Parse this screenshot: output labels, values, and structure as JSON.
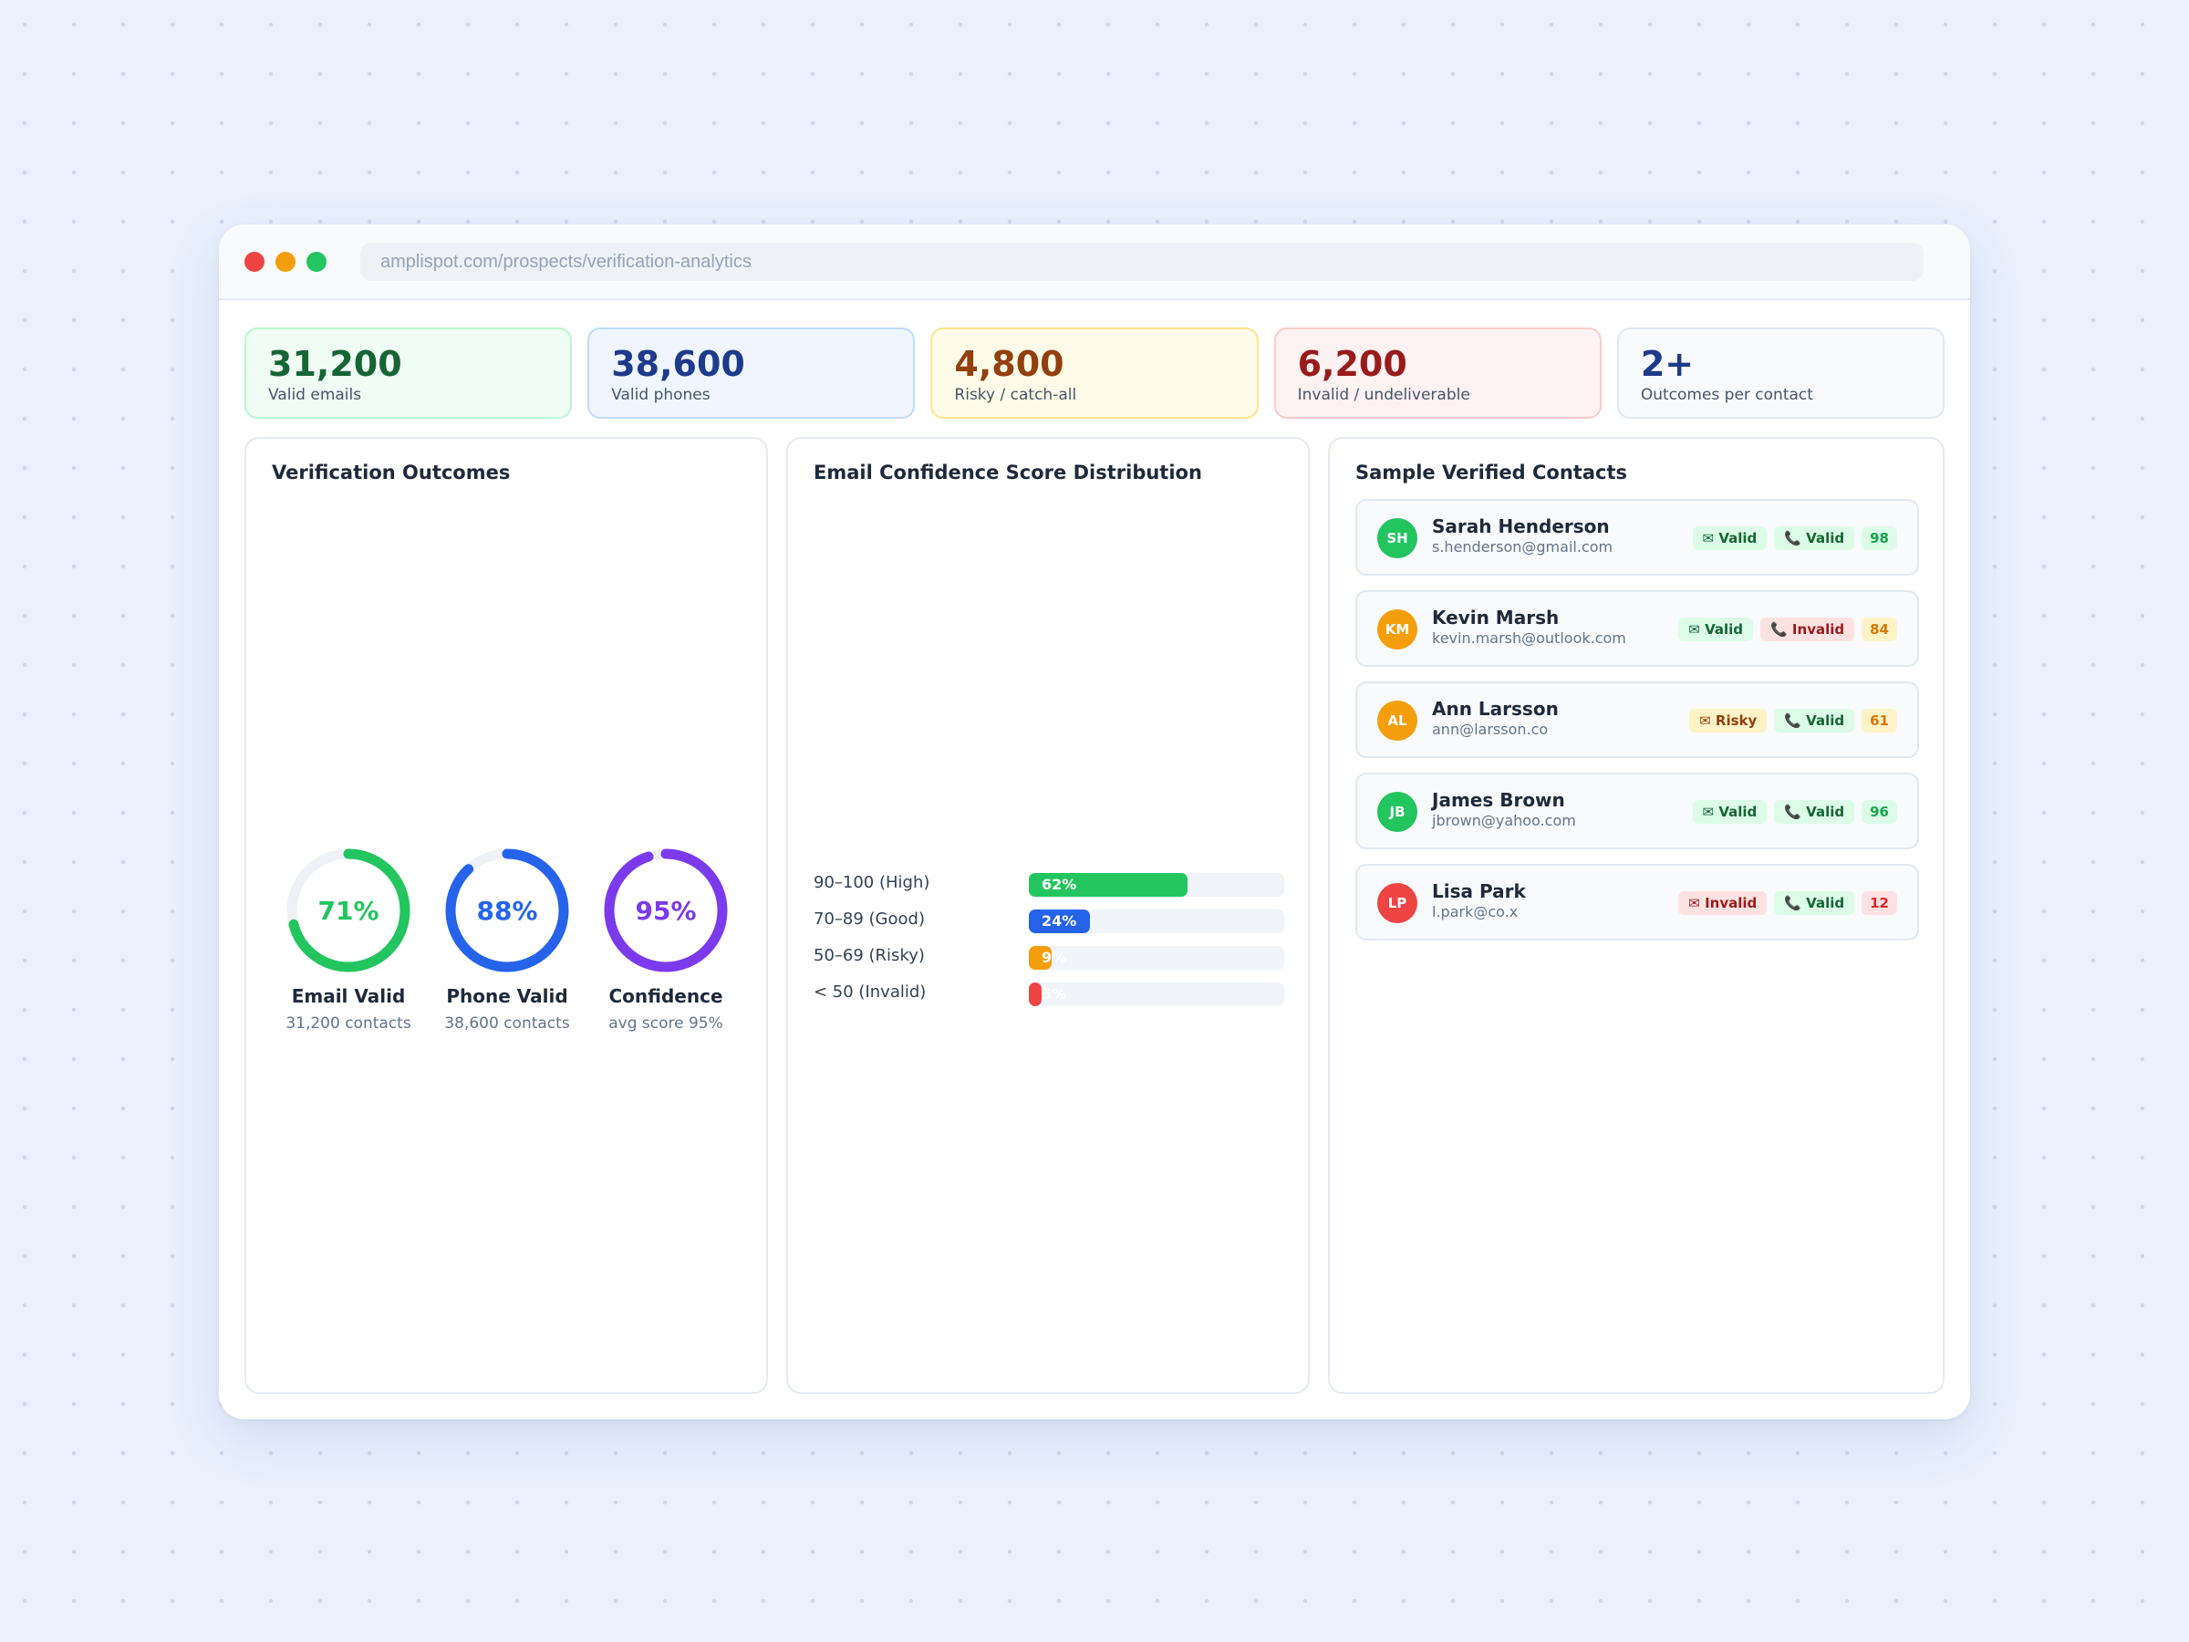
{
  "browser": {
    "url": "amplispot.com/prospects/verification-analytics"
  },
  "stats": [
    {
      "value": "31,200",
      "label": "Valid emails"
    },
    {
      "value": "38,600",
      "label": "Valid phones"
    },
    {
      "value": "4,800",
      "label": "Risky / catch-all"
    },
    {
      "value": "6,200",
      "label": "Invalid / undeliverable"
    },
    {
      "value": "2+",
      "label": "Outcomes per contact"
    }
  ],
  "outcomes": {
    "title": "Verification Outcomes",
    "items": [
      {
        "percent": 71,
        "percent_label": "71%",
        "name": "Email Valid",
        "sub": "31,200 contacts",
        "color": "#22c55e"
      },
      {
        "percent": 88,
        "percent_label": "88%",
        "name": "Phone Valid",
        "sub": "38,600 contacts",
        "color": "#2563eb"
      },
      {
        "percent": 95,
        "percent_label": "95%",
        "name": "Confidence",
        "sub": "avg score 95%",
        "color": "#7c3aed"
      }
    ]
  },
  "distribution": {
    "title": "Email Confidence Score Distribution",
    "rows": [
      {
        "label": "90–100 (High)",
        "value": 62,
        "value_label": "62%",
        "color": "#22c55e"
      },
      {
        "label": "70–89 (Good)",
        "value": 24,
        "value_label": "24%",
        "color": "#2563eb"
      },
      {
        "label": "50–69 (Risky)",
        "value": 9,
        "value_label": "9%",
        "color": "#f59e0b"
      },
      {
        "label": "< 50 (Invalid)",
        "value": 5,
        "value_label": "5%",
        "color": "#ef4444"
      }
    ]
  },
  "contacts": {
    "title": "Sample Verified Contacts",
    "items": [
      {
        "initials": "SH",
        "name": "Sarah Henderson",
        "email": "s.henderson@gmail.com",
        "avatar_color": "#22c55e",
        "email_status": "✉ Valid",
        "email_kind": "valid",
        "phone_status": "📞 Valid",
        "phone_kind": "valid",
        "score": "98",
        "score_kind": "green"
      },
      {
        "initials": "KM",
        "name": "Kevin Marsh",
        "email": "kevin.marsh@outlook.com",
        "avatar_color": "#f59e0b",
        "email_status": "✉ Valid",
        "email_kind": "valid",
        "phone_status": "📞 Invalid",
        "phone_kind": "invalid",
        "score": "84",
        "score_kind": "amber"
      },
      {
        "initials": "AL",
        "name": "Ann Larsson",
        "email": "ann@larsson.co",
        "avatar_color": "#f59e0b",
        "email_status": "✉ Risky",
        "email_kind": "risky",
        "phone_status": "📞 Valid",
        "phone_kind": "valid",
        "score": "61",
        "score_kind": "amber"
      },
      {
        "initials": "JB",
        "name": "James Brown",
        "email": "jbrown@yahoo.com",
        "avatar_color": "#22c55e",
        "email_status": "✉ Valid",
        "email_kind": "valid",
        "phone_status": "📞 Valid",
        "phone_kind": "valid",
        "score": "96",
        "score_kind": "green"
      },
      {
        "initials": "LP",
        "name": "Lisa Park",
        "email": "l.park@co.x",
        "avatar_color": "#ef4444",
        "email_status": "✉ Invalid",
        "email_kind": "invalid",
        "phone_status": "📞 Valid",
        "phone_kind": "valid",
        "score": "12",
        "score_kind": "red"
      }
    ]
  }
}
